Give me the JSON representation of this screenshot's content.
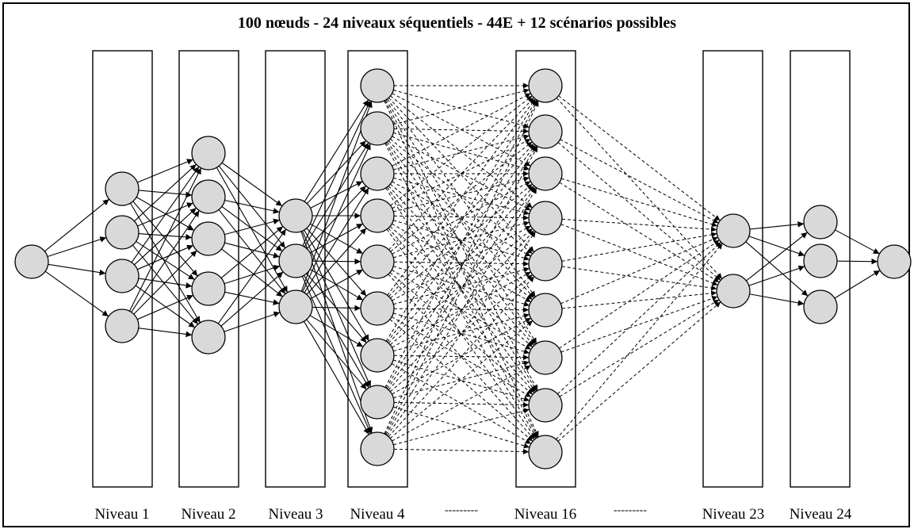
{
  "title": "100 nœuds - 24 niveaux séquentiels - 44E + 12 scénarios possibles",
  "levels": [
    {
      "label": "Niveau 1",
      "nodes": 4
    },
    {
      "label": "Niveau 2",
      "nodes": 5
    },
    {
      "label": "Niveau 3",
      "nodes": 3
    },
    {
      "label": "Niveau 4",
      "nodes": 9
    },
    {
      "label": "Niveau 16",
      "nodes": 9
    },
    {
      "label": "Niveau 23",
      "nodes": 2
    },
    {
      "label": "Niveau 24",
      "nodes": 3
    }
  ],
  "separators": [
    "---------",
    "---------"
  ],
  "colors": {
    "node_fill": "#d9d9d9",
    "stroke": "#000000"
  }
}
